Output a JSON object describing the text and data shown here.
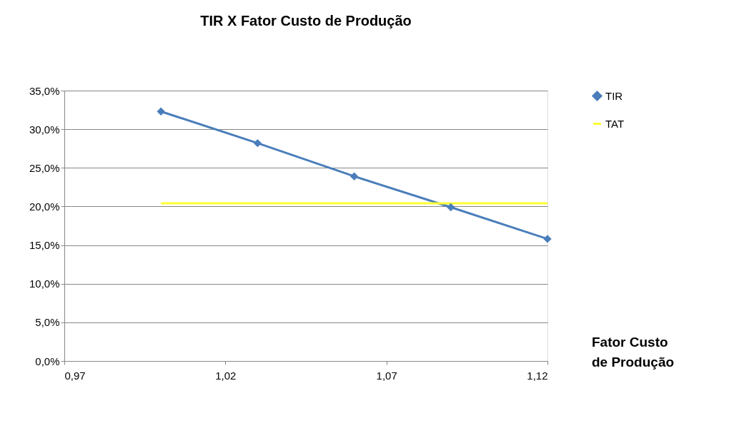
{
  "chart_data": {
    "type": "line",
    "title": "TIR X Fator Custo de  Produção",
    "xlabel": "Fator  Custo\nde Produção",
    "series": [
      {
        "name": "TIR",
        "color": "#4a7ebb",
        "marker": "diamond",
        "x": [
          1.0,
          1.03,
          1.06,
          1.09,
          1.12
        ],
        "values": [
          32.3,
          28.2,
          23.9,
          19.9,
          15.8
        ]
      },
      {
        "name": "TAT",
        "color": "#ffff33",
        "marker": "none",
        "x": [
          1.0,
          1.12
        ],
        "values": [
          20.4,
          20.4
        ]
      }
    ],
    "xlim": [
      0.97,
      1.12
    ],
    "xticks": [
      {
        "value": 0.97,
        "label": "0,97"
      },
      {
        "value": 1.02,
        "label": "1,02"
      },
      {
        "value": 1.07,
        "label": "1,07"
      },
      {
        "value": 1.12,
        "label": "1,12"
      }
    ],
    "ylim": [
      0,
      35
    ],
    "yticks": [
      {
        "value": 0,
        "label": "0,0%"
      },
      {
        "value": 5,
        "label": "5,0%"
      },
      {
        "value": 10,
        "label": "10,0%"
      },
      {
        "value": 15,
        "label": "15,0%"
      },
      {
        "value": 20,
        "label": "20,0%"
      },
      {
        "value": 25,
        "label": "25,0%"
      },
      {
        "value": 30,
        "label": "30,0%"
      },
      {
        "value": 35,
        "label": "35,0%"
      }
    ],
    "grid": "y",
    "legend": "right",
    "line_style": "solid"
  }
}
